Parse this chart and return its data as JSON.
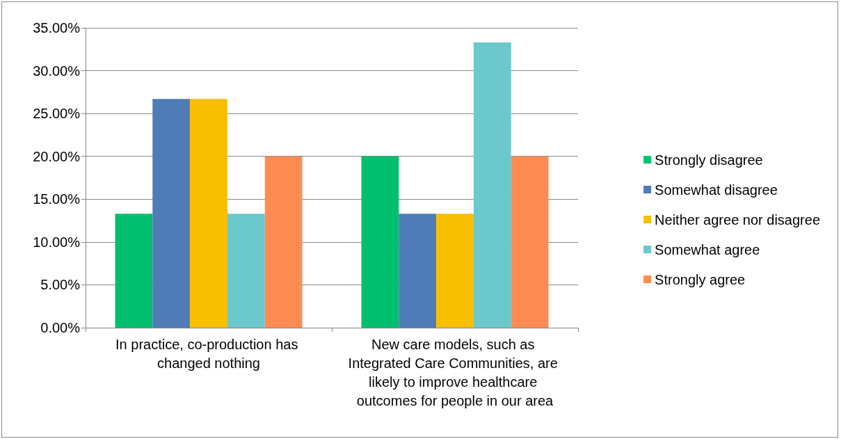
{
  "chart_data": {
    "type": "bar",
    "categories": [
      "In practice, co-production has changed nothing",
      "New care models, such as Integrated Care Communities, are likely to improve healthcare outcomes for people in our area"
    ],
    "series": [
      {
        "name": "Strongly disagree",
        "color": "#00c06f",
        "values": [
          13.3,
          20
        ]
      },
      {
        "name": "Somewhat disagree",
        "color": "#4f7bb6",
        "values": [
          26.7,
          13.3
        ]
      },
      {
        "name": "Neither agree nor disagree",
        "color": "#f8be00",
        "values": [
          26.7,
          13.3
        ]
      },
      {
        "name": "Somewhat agree",
        "color": "#6bc8cc",
        "values": [
          13.3,
          33.3
        ]
      },
      {
        "name": "Strongly agree",
        "color": "#fe8b52",
        "values": [
          20,
          20
        ]
      }
    ],
    "ylim": [
      0,
      35
    ],
    "yticks": [
      {
        "value": 0,
        "label": "0.00%"
      },
      {
        "value": 5,
        "label": "5.00%"
      },
      {
        "value": 10,
        "label": "10.00%"
      },
      {
        "value": 15,
        "label": "15.00%"
      },
      {
        "value": 20,
        "label": "20.00%"
      },
      {
        "value": 25,
        "label": "25.00%"
      },
      {
        "value": 30,
        "label": "30.00%"
      },
      {
        "value": 35,
        "label": "35.00%"
      }
    ],
    "grid": "y",
    "legend": "right"
  }
}
